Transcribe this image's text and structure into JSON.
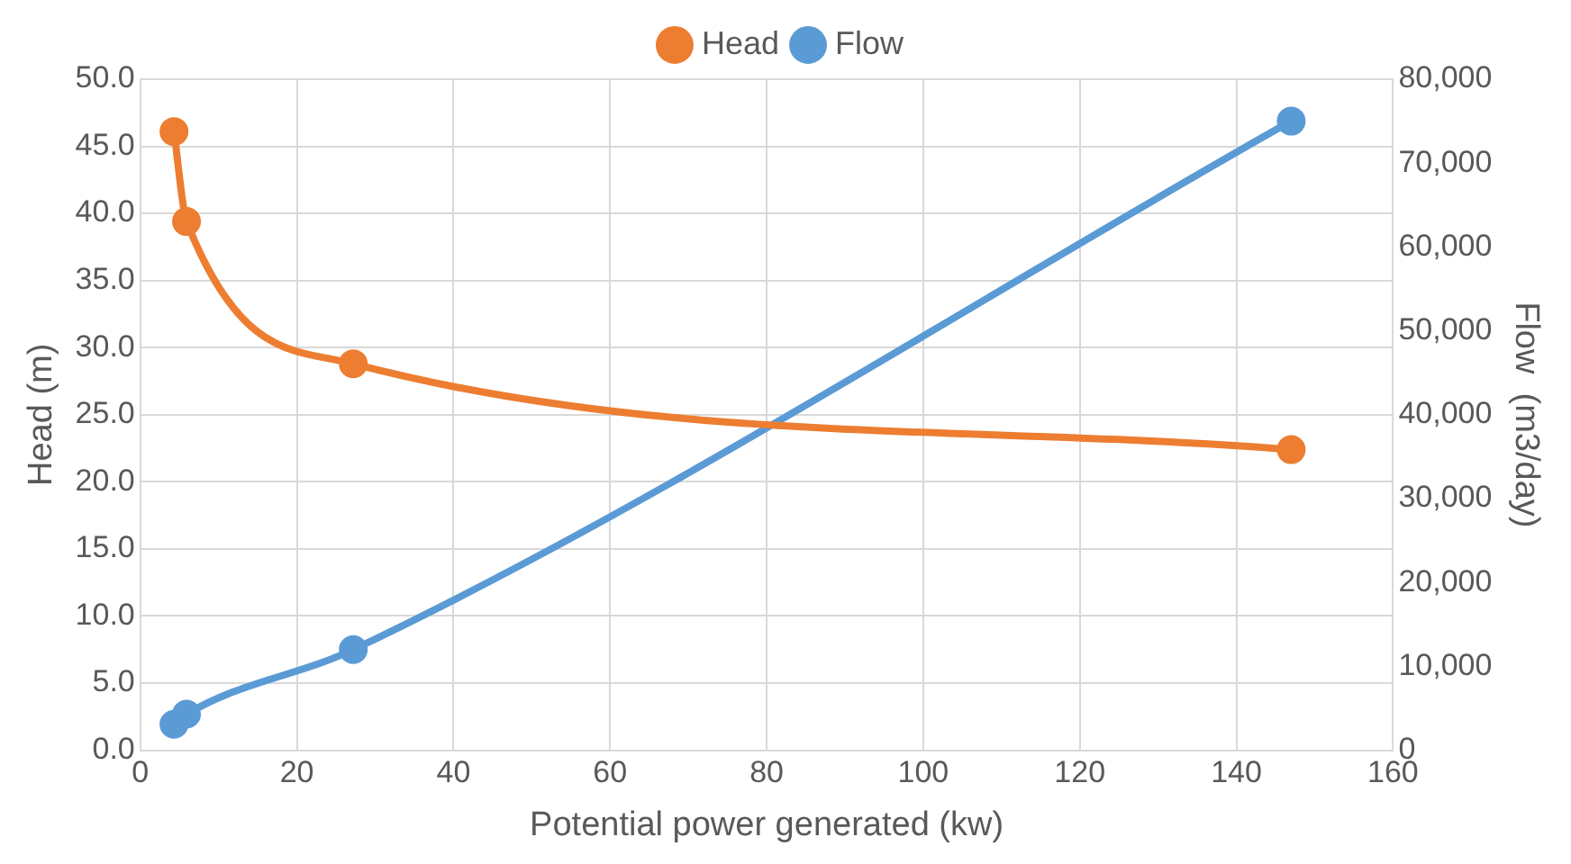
{
  "chart_data": {
    "type": "line",
    "xlabel": "Potential power generated (kw)",
    "ylabel": "Head (m)",
    "y2label": "Flow  (m3/day)",
    "xlim": [
      0,
      160
    ],
    "xticks": [
      0,
      20,
      40,
      60,
      80,
      100,
      120,
      140,
      160
    ],
    "ylim": [
      0,
      50
    ],
    "yticks": [
      {
        "value": 0,
        "label": "0.0"
      },
      {
        "value": 5,
        "label": "5.0"
      },
      {
        "value": 10,
        "label": "10.0"
      },
      {
        "value": 15,
        "label": "15.0"
      },
      {
        "value": 20,
        "label": "20.0"
      },
      {
        "value": 25,
        "label": "25.0"
      },
      {
        "value": 30,
        "label": "30.0"
      },
      {
        "value": 35,
        "label": "35.0"
      },
      {
        "value": 40,
        "label": "40.0"
      },
      {
        "value": 45,
        "label": "45.0"
      },
      {
        "value": 50,
        "label": "50.0"
      }
    ],
    "y2lim": [
      0,
      80000
    ],
    "y2ticks": [
      0,
      {
        "value": 10000,
        "label": "10,000"
      },
      {
        "value": 20000,
        "label": "20,000"
      },
      {
        "value": 30000,
        "label": "30,000"
      },
      {
        "value": 40000,
        "label": "40,000"
      },
      {
        "value": 50000,
        "label": "50,000"
      },
      {
        "value": 60000,
        "label": "60,000"
      },
      {
        "value": 70000,
        "label": "70,000"
      },
      {
        "value": 80000,
        "label": "80,000"
      }
    ],
    "series": [
      {
        "name": "Head",
        "color": "#ed7d31",
        "x": [
          4.3,
          5.9,
          27.2,
          147
        ],
        "values": [
          46.1,
          39.4,
          28.8,
          22.4
        ]
      },
      {
        "name": "Flow",
        "color": "#5b9bd5",
        "axis": "y2",
        "x": [
          4.3,
          5.9,
          27.2,
          147
        ],
        "values": [
          3100,
          4300,
          12000,
          75000
        ]
      }
    ],
    "grid": true,
    "legend": "top",
    "marker": "circle",
    "line_style": "solid"
  }
}
